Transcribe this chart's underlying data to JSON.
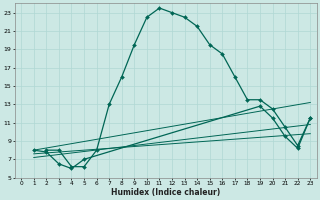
{
  "title": "",
  "xlabel": "Humidex (Indice chaleur)",
  "ylabel": "",
  "background_color": "#cce8e4",
  "grid_color": "#b0d8d4",
  "line_color": "#006655",
  "xlim": [
    -0.5,
    23.5
  ],
  "ylim": [
    5,
    24
  ],
  "xticks": [
    0,
    1,
    2,
    3,
    4,
    5,
    6,
    7,
    8,
    9,
    10,
    11,
    12,
    13,
    14,
    15,
    16,
    17,
    18,
    19,
    20,
    21,
    22,
    23
  ],
  "yticks": [
    5,
    7,
    9,
    11,
    13,
    15,
    17,
    19,
    21,
    23
  ],
  "line1_x": [
    2,
    3,
    4,
    5,
    6,
    7,
    8,
    9,
    10,
    11,
    12,
    13,
    14,
    15,
    16,
    17,
    18,
    19,
    20,
    21,
    22,
    23
  ],
  "line1_y": [
    8,
    8,
    6.2,
    6.2,
    8,
    13,
    16,
    19.5,
    22.5,
    23.5,
    23,
    22.5,
    21.5,
    19.5,
    18.5,
    16,
    13.5,
    13.5,
    12.5,
    10.5,
    8.5,
    11.5
  ],
  "line2_x": [
    1,
    2,
    3,
    4,
    5,
    19,
    20,
    21,
    22,
    23
  ],
  "line2_y": [
    8,
    7.8,
    6.5,
    6.0,
    7.0,
    12.8,
    11.5,
    9.5,
    8.2,
    11.5
  ],
  "line3_x": [
    1,
    23
  ],
  "line3_y": [
    8.0,
    13.2
  ],
  "line4_x": [
    1,
    23
  ],
  "line4_y": [
    7.2,
    10.8
  ],
  "line5_x": [
    1,
    23
  ],
  "line5_y": [
    7.6,
    9.8
  ]
}
